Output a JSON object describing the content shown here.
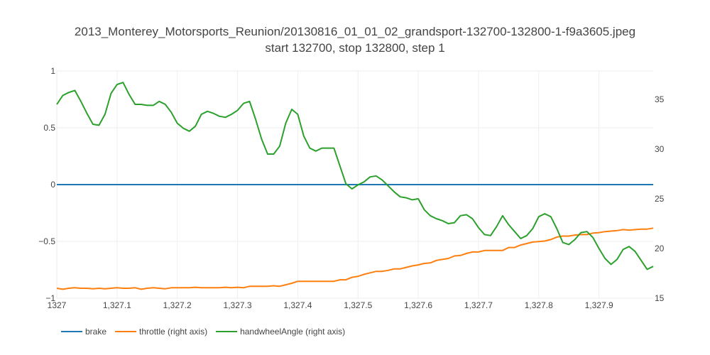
{
  "chart_data": {
    "type": "line",
    "title": "2013_Monterey_Motorsports_Reunion/20130816_01_01_02_grandsport-132700-132800-1-f9a3605.jpeg",
    "subtitle": "start 132700, stop 132800, step 1",
    "xlabel": "",
    "ylabel": "",
    "y2label": "",
    "xlim": [
      1327.0,
      1327.99
    ],
    "ylim": [
      -1,
      1
    ],
    "y2lim": [
      15,
      37.857
    ],
    "x_ticks": [
      1327.0,
      1327.1,
      1327.2,
      1327.3,
      1327.4,
      1327.5,
      1327.6,
      1327.7,
      1327.8,
      1327.9
    ],
    "x_tick_labels": [
      "1327",
      "1,327.1",
      "1,327.2",
      "1,327.3",
      "1,327.4",
      "1,327.5",
      "1,327.6",
      "1,327.7",
      "1,327.8",
      "1,327.9"
    ],
    "y_ticks": [
      1,
      0.5,
      0,
      -0.5,
      -1
    ],
    "y_tick_labels": [
      "1",
      "0.5",
      "0",
      "−0.5",
      "−1"
    ],
    "y2_ticks": [
      35,
      30,
      25,
      20,
      15
    ],
    "y2_tick_labels": [
      "35",
      "30",
      "25",
      "20",
      "15"
    ],
    "grid": true,
    "legend_position": "bottom-left",
    "series": [
      {
        "name": "brake",
        "axis": "left",
        "color": "#1f77b4",
        "x": [
          1327.0,
          1327.99
        ],
        "values": [
          0,
          0
        ]
      },
      {
        "name": "throttle (right axis)",
        "axis": "right",
        "color": "#ff7f0e",
        "x": [
          1327.0,
          1327.01,
          1327.02,
          1327.03,
          1327.04,
          1327.05,
          1327.06,
          1327.07,
          1327.08,
          1327.09,
          1327.1,
          1327.11,
          1327.12,
          1327.13,
          1327.14,
          1327.15,
          1327.16,
          1327.17,
          1327.18,
          1327.19,
          1327.2,
          1327.21,
          1327.22,
          1327.23,
          1327.24,
          1327.25,
          1327.26,
          1327.27,
          1327.28,
          1327.29,
          1327.3,
          1327.31,
          1327.32,
          1327.33,
          1327.34,
          1327.35,
          1327.36,
          1327.37,
          1327.38,
          1327.39,
          1327.4,
          1327.41,
          1327.42,
          1327.43,
          1327.44,
          1327.45,
          1327.46,
          1327.47,
          1327.48,
          1327.49,
          1327.5,
          1327.51,
          1327.52,
          1327.53,
          1327.54,
          1327.55,
          1327.56,
          1327.57,
          1327.58,
          1327.59,
          1327.6,
          1327.61,
          1327.62,
          1327.63,
          1327.64,
          1327.65,
          1327.66,
          1327.67,
          1327.68,
          1327.69,
          1327.7,
          1327.71,
          1327.72,
          1327.73,
          1327.74,
          1327.75,
          1327.76,
          1327.77,
          1327.78,
          1327.79,
          1327.8,
          1327.81,
          1327.82,
          1327.83,
          1327.84,
          1327.85,
          1327.86,
          1327.87,
          1327.88,
          1327.89,
          1327.9,
          1327.91,
          1327.92,
          1327.93,
          1327.94,
          1327.95,
          1327.96,
          1327.97,
          1327.98,
          1327.99
        ],
        "values": [
          16.0,
          15.9,
          16.0,
          16.05,
          16.0,
          16.0,
          15.95,
          16.0,
          15.95,
          16.0,
          16.05,
          16.0,
          16.0,
          16.05,
          15.9,
          16.0,
          16.05,
          16.0,
          15.95,
          16.05,
          16.05,
          16.05,
          16.05,
          16.1,
          16.05,
          16.05,
          16.05,
          16.05,
          16.1,
          16.05,
          16.1,
          16.05,
          16.2,
          16.2,
          16.2,
          16.2,
          16.25,
          16.2,
          16.35,
          16.5,
          16.7,
          16.7,
          16.7,
          16.7,
          16.7,
          16.7,
          16.7,
          16.85,
          16.85,
          17.1,
          17.2,
          17.4,
          17.55,
          17.7,
          17.7,
          17.8,
          17.95,
          17.95,
          18.1,
          18.25,
          18.35,
          18.5,
          18.55,
          18.8,
          18.9,
          19.0,
          19.25,
          19.3,
          19.5,
          19.65,
          19.65,
          19.8,
          19.8,
          19.8,
          19.8,
          20.1,
          20.1,
          20.35,
          20.5,
          20.65,
          20.7,
          20.75,
          20.9,
          21.15,
          21.25,
          21.25,
          21.35,
          21.4,
          21.4,
          21.55,
          21.6,
          21.7,
          21.75,
          21.8,
          21.9,
          21.85,
          21.9,
          21.95,
          21.95,
          22.05
        ]
      },
      {
        "name": "handwheelAngle (right axis)",
        "axis": "right",
        "color": "#2ca02c",
        "x": [
          1327.0,
          1327.01,
          1327.02,
          1327.03,
          1327.04,
          1327.05,
          1327.06,
          1327.07,
          1327.08,
          1327.09,
          1327.1,
          1327.11,
          1327.12,
          1327.13,
          1327.14,
          1327.15,
          1327.16,
          1327.17,
          1327.18,
          1327.19,
          1327.2,
          1327.21,
          1327.22,
          1327.23,
          1327.24,
          1327.25,
          1327.26,
          1327.27,
          1327.28,
          1327.29,
          1327.3,
          1327.31,
          1327.32,
          1327.33,
          1327.34,
          1327.35,
          1327.36,
          1327.37,
          1327.38,
          1327.39,
          1327.4,
          1327.41,
          1327.42,
          1327.43,
          1327.44,
          1327.45,
          1327.46,
          1327.47,
          1327.48,
          1327.49,
          1327.5,
          1327.51,
          1327.52,
          1327.53,
          1327.54,
          1327.55,
          1327.56,
          1327.57,
          1327.58,
          1327.59,
          1327.6,
          1327.61,
          1327.62,
          1327.63,
          1327.64,
          1327.65,
          1327.66,
          1327.67,
          1327.68,
          1327.69,
          1327.7,
          1327.71,
          1327.72,
          1327.73,
          1327.74,
          1327.75,
          1327.76,
          1327.77,
          1327.78,
          1327.79,
          1327.8,
          1327.81,
          1327.82,
          1327.83,
          1327.84,
          1327.85,
          1327.86,
          1327.87,
          1327.88,
          1327.89,
          1327.9,
          1327.91,
          1327.92,
          1327.93,
          1327.94,
          1327.95,
          1327.96,
          1327.97,
          1327.98,
          1327.99
        ],
        "values": [
          34.5,
          35.4,
          35.7,
          35.9,
          34.8,
          33.6,
          32.5,
          32.4,
          33.5,
          35.6,
          36.5,
          36.7,
          35.5,
          34.5,
          34.5,
          34.4,
          34.4,
          34.8,
          34.5,
          33.7,
          32.6,
          32.1,
          31.8,
          32.3,
          33.5,
          33.8,
          33.6,
          33.3,
          33.2,
          33.5,
          33.9,
          34.6,
          34.8,
          33.0,
          31.0,
          29.5,
          29.5,
          30.3,
          32.6,
          34.0,
          33.5,
          31.3,
          30.1,
          29.8,
          30.1,
          30.1,
          30.1,
          28.3,
          26.5,
          26.0,
          26.4,
          26.7,
          27.2,
          27.3,
          26.9,
          26.3,
          25.7,
          25.2,
          25.1,
          24.9,
          25.0,
          23.9,
          23.3,
          23.0,
          22.8,
          22.5,
          22.6,
          23.3,
          23.4,
          23.0,
          22.1,
          21.4,
          21.3,
          22.2,
          23.3,
          22.4,
          21.7,
          21.0,
          21.3,
          22.0,
          23.2,
          23.5,
          23.2,
          22.0,
          20.6,
          20.4,
          20.9,
          21.6,
          21.7,
          21.1,
          20.0,
          19.0,
          18.4,
          18.9,
          19.9,
          20.2,
          19.7,
          18.8,
          17.9,
          18.2
        ]
      }
    ]
  }
}
